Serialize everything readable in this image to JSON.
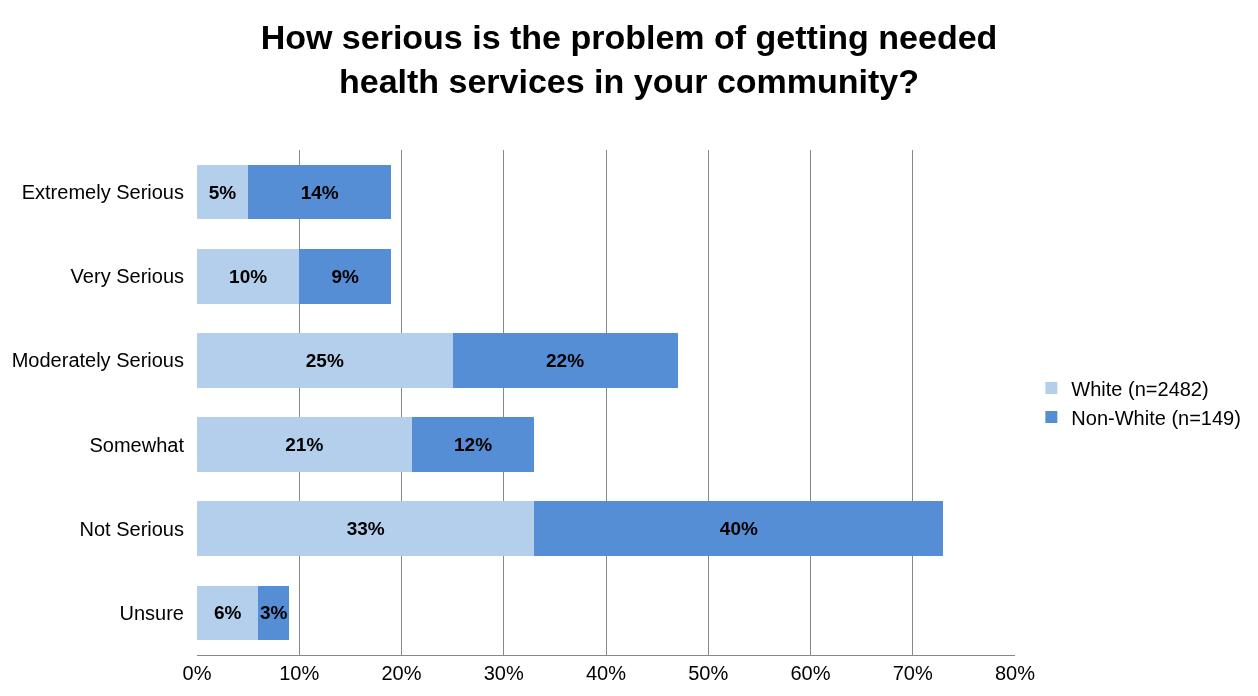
{
  "chart_data": {
    "type": "bar",
    "title": "How serious is the problem of getting needed health services in your community?",
    "orientation": "horizontal",
    "stacked": true,
    "categories": [
      "Extremely Serious",
      "Very Serious",
      "Moderately Serious",
      "Somewhat",
      "Not Serious",
      "Unsure"
    ],
    "series": [
      {
        "name": "White (n=2482)",
        "color": "#b4cfec",
        "values": [
          5,
          10,
          25,
          21,
          33,
          6
        ],
        "value_labels": [
          "5%",
          "10%",
          "25%",
          "21%",
          "33%",
          "6%"
        ]
      },
      {
        "name": "Non-White (n=149)",
        "color": "#558ed5",
        "values": [
          14,
          9,
          22,
          12,
          40,
          3
        ],
        "value_labels": [
          "14%",
          "9%",
          "22%",
          "12%",
          "40%",
          "3%"
        ]
      }
    ],
    "xlim": [
      0,
      80
    ],
    "xticks": [
      {
        "value": 0,
        "label": "0%"
      },
      {
        "value": 10,
        "label": "10%"
      },
      {
        "value": 20,
        "label": "20%"
      },
      {
        "value": 30,
        "label": "30%"
      },
      {
        "value": 40,
        "label": "40%"
      },
      {
        "value": 50,
        "label": "50%"
      },
      {
        "value": 60,
        "label": "60%"
      },
      {
        "value": 70,
        "label": "70%"
      },
      {
        "value": 80,
        "label": "80%"
      }
    ],
    "grid": "x",
    "legend": "right"
  }
}
